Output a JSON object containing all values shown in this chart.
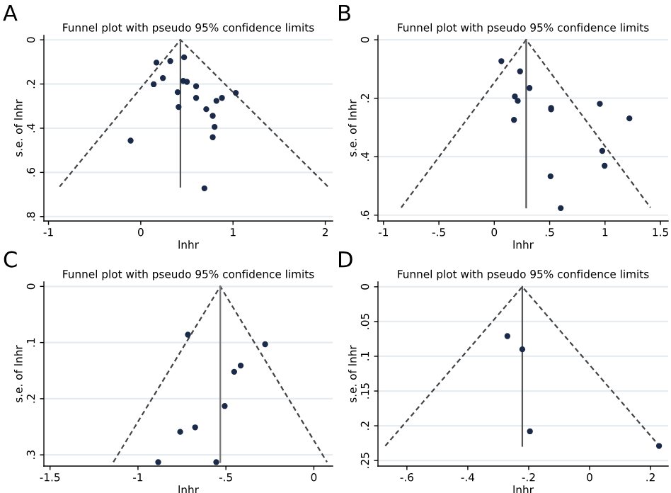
{
  "chart_data": [
    {
      "type": "scatter",
      "marker": "circle",
      "title": "Funnel plot with pseudo 95% confidence limits",
      "xlabel": "lnhr",
      "ylabel": "s.e. of lnhr",
      "annotations": [
        "A"
      ],
      "grid": "y",
      "legend": false,
      "xlim": [
        -1.05,
        2.08
      ],
      "ylim": [
        0.82,
        -0.02
      ],
      "xticks": [
        -1,
        0,
        1,
        2
      ],
      "yticks": [
        0,
        {
          "value": 0.2,
          "label": ".2"
        },
        {
          "value": 0.4,
          "label": ".4"
        },
        {
          "value": 0.6,
          "label": ".6"
        },
        {
          "value": 0.8,
          "label": ".8"
        }
      ],
      "series": [
        {
          "color": "#1a2a48",
          "x": [
            0.17,
            0.32,
            0.47,
            0.24,
            0.14,
            0.46,
            0.5,
            0.6,
            0.4,
            0.6,
            1.03,
            0.88,
            0.82,
            0.41,
            0.71,
            0.78,
            0.8,
            0.78,
            -0.11,
            0.69
          ],
          "values": [
            0.103,
            0.096,
            0.079,
            0.173,
            0.201,
            0.186,
            0.19,
            0.21,
            0.237,
            0.263,
            0.24,
            0.263,
            0.276,
            0.304,
            0.314,
            0.344,
            0.394,
            0.441,
            0.456,
            0.672
          ]
        },
        {
          "type": "line",
          "line_style": "dashed",
          "color": "#444444",
          "marker": "none",
          "x": [
            -0.88,
            0.43,
            2.03
          ],
          "values": [
            0.665,
            0,
            0.665
          ]
        },
        {
          "type": "line",
          "line_style": "solid",
          "color": "#555555",
          "marker": "none",
          "x": [
            0.43,
            0.43
          ],
          "values": [
            0,
            0.665
          ]
        }
      ]
    },
    {
      "type": "scatter",
      "marker": "circle",
      "title": "Funnel plot with pseudo 95% confidence limits",
      "xlabel": "lnhr",
      "ylabel": "s.e. of lnhr",
      "annotations": [
        "B"
      ],
      "grid": "y",
      "legend": false,
      "xlim": [
        -1.05,
        1.57
      ],
      "ylim": [
        0.62,
        -0.015
      ],
      "xticks": [
        -1,
        {
          "value": -0.5,
          "label": "-.5"
        },
        0,
        {
          "value": 0.5,
          "label": ".5"
        },
        1,
        1.5
      ],
      "yticks": [
        0,
        {
          "value": 0.2,
          "label": ".2"
        },
        {
          "value": 0.4,
          "label": ".4"
        },
        {
          "value": 0.6,
          "label": ".6"
        }
      ],
      "series": [
        {
          "color": "#1a2a48",
          "x": [
            0.064,
            0.233,
            0.318,
            0.186,
            0.212,
            0.178,
            0.513,
            0.513,
            0.953,
            1.22,
            0.975,
            0.996,
            0.508,
            0.6
          ],
          "values": [
            0.073,
            0.108,
            0.165,
            0.194,
            0.209,
            0.274,
            0.233,
            0.238,
            0.219,
            0.269,
            0.38,
            0.431,
            0.467,
            0.576
          ]
        },
        {
          "type": "line",
          "line_style": "dashed",
          "color": "#444444",
          "marker": "none",
          "x": [
            -0.84,
            0.288,
            1.41
          ],
          "values": [
            0.574,
            0,
            0.574
          ]
        },
        {
          "type": "line",
          "line_style": "solid",
          "color": "#555555",
          "marker": "none",
          "x": [
            0.288,
            0.288
          ],
          "values": [
            0,
            0.574
          ]
        }
      ]
    },
    {
      "type": "scatter",
      "marker": "circle",
      "title": "Funnel plot with pseudo 95% confidence limits",
      "xlabel": "lnhr",
      "ylabel": "s.e. of lnhr",
      "annotations": [
        "C"
      ],
      "grid": "y",
      "legend": false,
      "xlim": [
        -1.535,
        0.107
      ],
      "ylim": [
        0.32,
        -0.008
      ],
      "xticks": [
        -1.5,
        -1,
        {
          "value": -0.5,
          "label": "-.5"
        },
        0
      ],
      "yticks": [
        0,
        {
          "value": 0.1,
          "label": ".1"
        },
        {
          "value": 0.2,
          "label": ".2"
        },
        {
          "value": 0.3,
          "label": ".3"
        }
      ],
      "series": [
        {
          "color": "#1a2a48",
          "x": [
            -0.716,
            -0.277,
            -0.416,
            -0.453,
            -0.507,
            -0.675,
            -0.76,
            -0.885,
            -0.555
          ],
          "values": [
            0.086,
            0.103,
            0.141,
            0.152,
            0.213,
            0.251,
            0.259,
            0.313,
            0.313
          ]
        },
        {
          "type": "line",
          "line_style": "dashed",
          "color": "#444444",
          "marker": "none",
          "x": [
            -1.14,
            -0.532,
            0.075
          ],
          "values": [
            0.313,
            0,
            0.313
          ]
        },
        {
          "type": "line",
          "line_style": "solid",
          "color": "#777777",
          "marker": "none",
          "x": [
            -0.532,
            -0.532
          ],
          "values": [
            0,
            0.313
          ]
        }
      ]
    },
    {
      "type": "scatter",
      "marker": "circle",
      "title": "Funnel plot with pseudo 95% confidence limits",
      "xlabel": "lnhr",
      "ylabel": "s.e. of lnhr",
      "annotations": [
        "D"
      ],
      "grid": "y",
      "legend": false,
      "xlim": [
        -0.695,
        0.258
      ],
      "ylim": [
        0.258,
        -0.007
      ],
      "xticks": [
        {
          "value": -0.6,
          "label": "-.6"
        },
        {
          "value": -0.4,
          "label": "-.4"
        },
        {
          "value": -0.2,
          "label": "-.2"
        },
        0,
        {
          "value": 0.2,
          "label": ".2"
        }
      ],
      "yticks": [
        0,
        {
          "value": 0.05,
          "label": ".05"
        },
        {
          "value": 0.1,
          "label": ".1"
        },
        {
          "value": 0.15,
          "label": ".15"
        },
        {
          "value": 0.2,
          "label": ".2"
        },
        {
          "value": 0.25,
          "label": ".25"
        }
      ],
      "series": [
        {
          "color": "#1a2a48",
          "x": [
            -0.27,
            -0.221,
            -0.196,
            0.228
          ],
          "values": [
            0.071,
            0.09,
            0.208,
            0.229
          ]
        },
        {
          "type": "line",
          "line_style": "dashed",
          "color": "#444444",
          "marker": "none",
          "x": [
            -0.671,
            -0.221,
            0.229
          ],
          "values": [
            0.229,
            0,
            0.229
          ]
        },
        {
          "type": "line",
          "line_style": "solid",
          "color": "#555555",
          "marker": "none",
          "x": [
            -0.221,
            -0.221
          ],
          "values": [
            0,
            0.229
          ]
        }
      ]
    }
  ]
}
